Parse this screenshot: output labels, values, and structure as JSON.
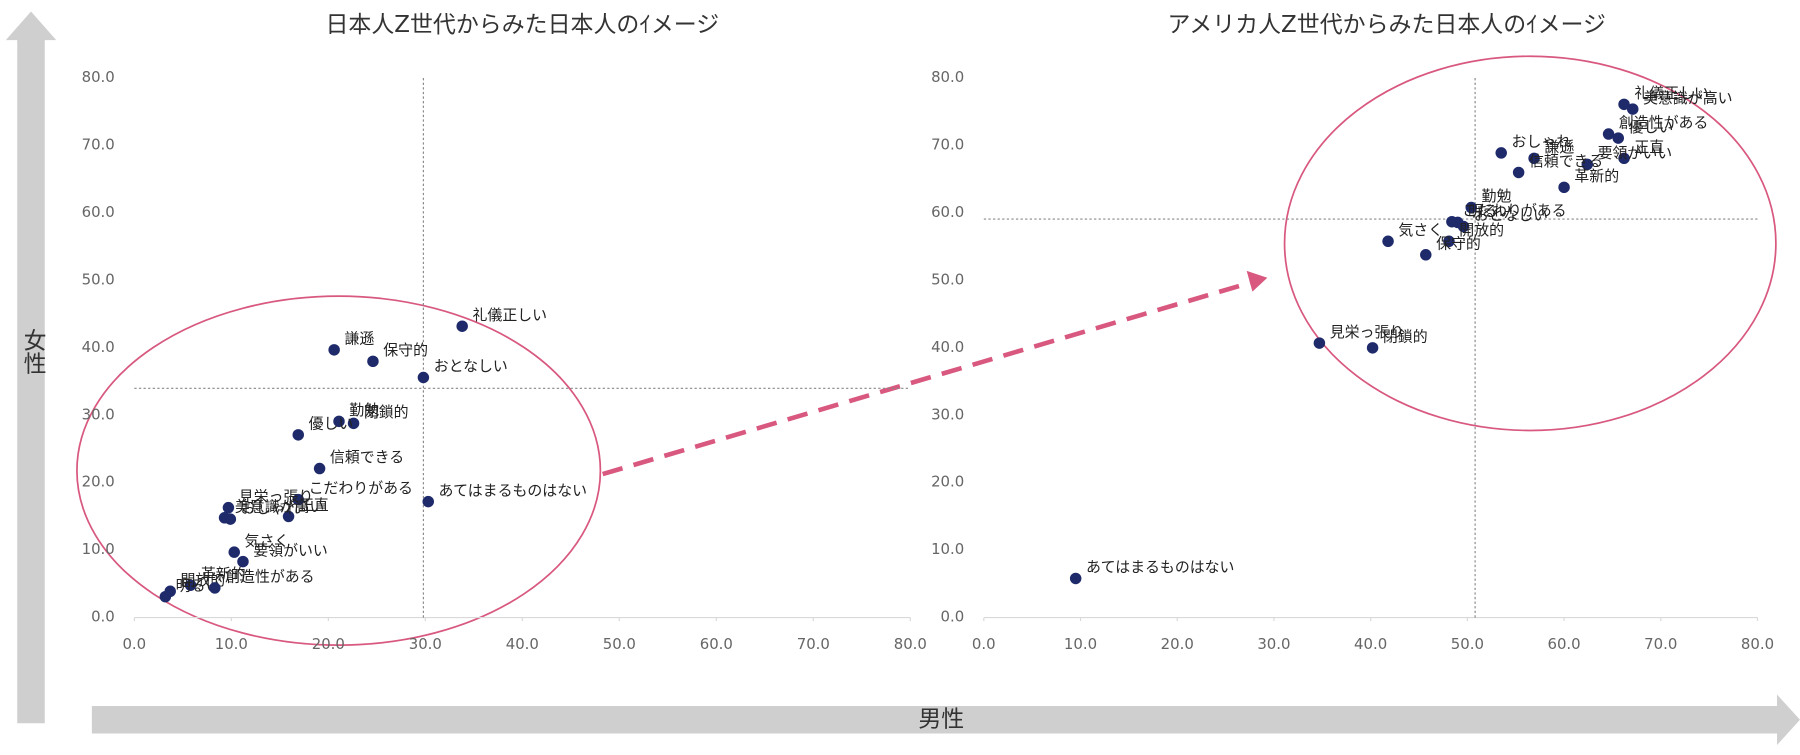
{
  "axis_labels": {
    "y": "女性",
    "x": "男性"
  },
  "chart_data": [
    {
      "type": "scatter",
      "title": "日本人Z世代からみた日本人のｲメージ",
      "xlim": [
        0,
        80
      ],
      "ylim": [
        0,
        80
      ],
      "xticks": [
        {
          "value": 0,
          "label": "0.0"
        },
        {
          "value": 10,
          "label": "10.0"
        },
        {
          "value": 20,
          "label": "20.0"
        },
        {
          "value": 30,
          "label": "30.0"
        },
        {
          "value": 40,
          "label": "40.0"
        },
        {
          "value": 50,
          "label": "50.0"
        },
        {
          "value": 60,
          "label": "60.0"
        },
        {
          "value": 70,
          "label": "70.0"
        },
        {
          "value": 80,
          "label": "80.0"
        }
      ],
      "yticks": [
        {
          "value": 0,
          "label": "0.0"
        },
        {
          "value": 10,
          "label": "10.0"
        },
        {
          "value": 20,
          "label": "20.0"
        },
        {
          "value": 30,
          "label": "30.0"
        },
        {
          "value": 40,
          "label": "40.0"
        },
        {
          "value": 50,
          "label": "50.0"
        },
        {
          "value": 60,
          "label": "60.0"
        },
        {
          "value": 70,
          "label": "70.0"
        },
        {
          "value": 80,
          "label": "80.0"
        }
      ],
      "reference_lines": {
        "x": 29.8,
        "y": 34.0
      },
      "series": [
        {
          "color": "#1f2a6b",
          "labels": [
            "礼儀正しい",
            "謙遜",
            "保守的",
            "おとなしい",
            "勤勉",
            "閉鎖的",
            "優しい",
            "信頼できる",
            "こだわりがある",
            "あてはまるものはない",
            "正直",
            "見栄っ張り",
            "美意識が高い",
            "おしゃれ",
            "要領がいい",
            "気さく",
            "革新的",
            "開放的",
            "明るい",
            "創造性がある"
          ],
          "x": [
            33.8,
            20.6,
            24.6,
            29.8,
            21.1,
            22.6,
            16.9,
            19.1,
            16.9,
            30.3,
            15.9,
            9.7,
            9.3,
            9.9,
            11.2,
            10.3,
            5.8,
            3.7,
            3.2,
            8.3
          ],
          "values": [
            43.2,
            39.7,
            38.0,
            35.6,
            29.1,
            28.8,
            27.1,
            22.1,
            17.5,
            17.2,
            15.0,
            16.3,
            14.8,
            14.6,
            8.3,
            9.7,
            4.8,
            3.9,
            3.1,
            4.4
          ]
        }
      ]
    },
    {
      "type": "scatter",
      "title": "アメリカ人Z世代からみた日本人のｲメージ",
      "xlim": [
        0,
        80
      ],
      "ylim": [
        0,
        80
      ],
      "xticks": [
        {
          "value": 0,
          "label": "0.0"
        },
        {
          "value": 10,
          "label": "10.0"
        },
        {
          "value": 20,
          "label": "20.0"
        },
        {
          "value": 30,
          "label": "30.0"
        },
        {
          "value": 40,
          "label": "40.0"
        },
        {
          "value": 50,
          "label": "50.0"
        },
        {
          "value": 60,
          "label": "60.0"
        },
        {
          "value": 70,
          "label": "70.0"
        },
        {
          "value": 80,
          "label": "80.0"
        }
      ],
      "yticks": [
        {
          "value": 0,
          "label": "0.0"
        },
        {
          "value": 10,
          "label": "10.0"
        },
        {
          "value": 20,
          "label": "20.0"
        },
        {
          "value": 30,
          "label": "30.0"
        },
        {
          "value": 40,
          "label": "40.0"
        },
        {
          "value": 50,
          "label": "50.0"
        },
        {
          "value": 60,
          "label": "60.0"
        },
        {
          "value": 70,
          "label": "70.0"
        },
        {
          "value": 80,
          "label": "80.0"
        }
      ],
      "reference_lines": {
        "x": 50.8,
        "y": 59.1
      },
      "series": [
        {
          "color": "#1f2a6b",
          "labels": [
            "礼儀正しい",
            "美意識が高い",
            "創造性がある",
            "優しい",
            "おしゃれ",
            "謙遜",
            "正直",
            "要領がいい",
            "勤勉",
            "信頼できる",
            "革新的",
            "こだわりがある",
            "明るい",
            "おとなしい",
            "気さく",
            "開放的",
            "保守的",
            "見栄っ張り",
            "閉鎖的",
            "あてはまるものはない"
          ],
          "x": [
            66.2,
            67.1,
            64.6,
            65.6,
            53.5,
            56.9,
            66.2,
            62.4,
            50.4,
            55.3,
            60.0,
            48.4,
            49.0,
            49.6,
            41.8,
            48.1,
            45.7,
            34.7,
            40.2,
            9.5
          ],
          "values": [
            76.1,
            75.4,
            71.7,
            71.1,
            68.9,
            68.1,
            68.1,
            67.2,
            60.8,
            66.0,
            63.8,
            58.7,
            58.6,
            58.0,
            55.8,
            55.8,
            53.8,
            40.7,
            40.0,
            5.8
          ]
        }
      ]
    }
  ]
}
